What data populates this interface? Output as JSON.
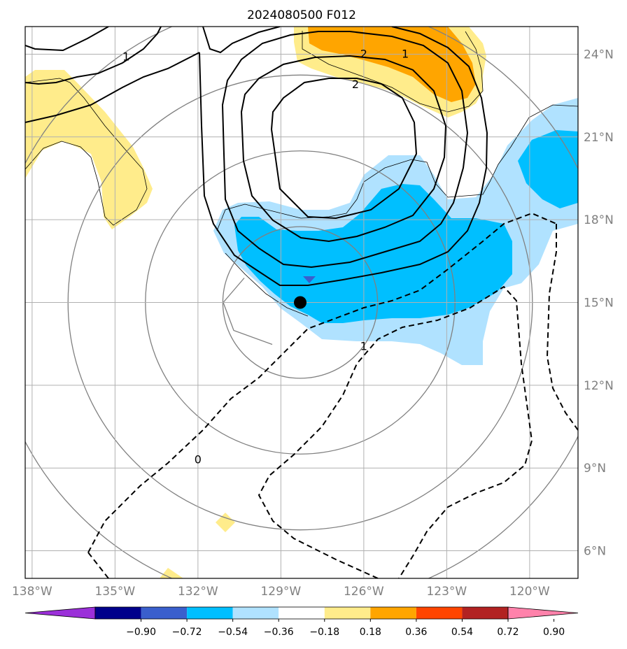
{
  "title": "2024080500 F012",
  "map": {
    "lon_range": [
      -138.25,
      -118.25
    ],
    "lat_range": [
      5,
      25
    ],
    "x_ticks": [
      {
        "value": -138,
        "label": "138°W"
      },
      {
        "value": -135,
        "label": "135°W"
      },
      {
        "value": -132,
        "label": "132°W"
      },
      {
        "value": -129,
        "label": "129°W"
      },
      {
        "value": -126,
        "label": "126°W"
      },
      {
        "value": -123,
        "label": "123°W"
      },
      {
        "value": -120,
        "label": "120°W"
      }
    ],
    "y_ticks": [
      {
        "value": 24,
        "label": "24°N"
      },
      {
        "value": 21,
        "label": "21°N"
      },
      {
        "value": 18,
        "label": "18°N"
      },
      {
        "value": 15,
        "label": "15°N"
      },
      {
        "value": 12,
        "label": "12°N"
      },
      {
        "value": 9,
        "label": "9°N"
      },
      {
        "value": 6,
        "label": "6°N"
      }
    ],
    "grid": true,
    "center_marker": {
      "lon": -128.3,
      "lat": 15.0
    },
    "secondary_marker": {
      "lon": -128.0,
      "lat": 15.9
    },
    "range_ring_center": {
      "lon": -128.3,
      "lat": 15.0
    },
    "range_ring_radii_deg": [
      2.8,
      5.6,
      8.4,
      11.2
    ],
    "contour_labels": [
      {
        "text": "1",
        "lon": -134.6,
        "lat": 23.9
      },
      {
        "text": "2",
        "lon": -126.0,
        "lat": 24.0
      },
      {
        "text": "1",
        "lon": -124.5,
        "lat": 24.0
      },
      {
        "text": "2",
        "lon": -126.3,
        "lat": 22.9
      },
      {
        "text": "0",
        "lon": -132.0,
        "lat": 9.3
      },
      {
        "text": "1",
        "lon": -126.0,
        "lat": 13.4
      }
    ]
  },
  "colorbar": {
    "colors": [
      "#9b30d9",
      "#00008b",
      "#3a5fcd",
      "#00bfff",
      "#b0e2ff",
      "#ffffff",
      "#ffec8b",
      "#ffa500",
      "#ff4500",
      "#b22222",
      "#ff82ab"
    ],
    "ticks": [
      "−0.90",
      "−0.72",
      "−0.54",
      "−0.36",
      "−0.18",
      "0.18",
      "0.36",
      "0.54",
      "0.72",
      "0.90"
    ]
  },
  "colors": {
    "light_blue": "#b0e2ff",
    "blue": "#00bfff",
    "dark_blue": "#3a5fcd",
    "yellow": "#ffec8b",
    "orange": "#ffa500",
    "ring": "#808080",
    "grid": "#b0b0b0",
    "tick_label": "#808080"
  }
}
